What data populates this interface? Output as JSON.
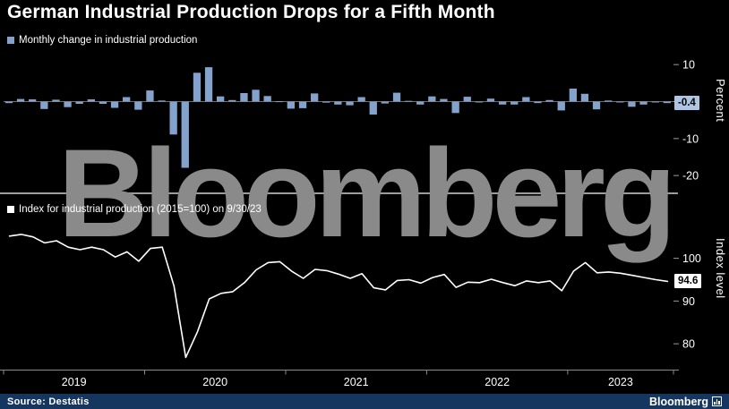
{
  "title": "German Industrial Production Drops for a Fifth Month",
  "watermark": "Bloomberg",
  "legends": {
    "bar": "Monthly change in industrial production",
    "line": "Index for industrial production (2015=100)  on 9/30/23"
  },
  "footer": {
    "source": "Source: Destatis",
    "brand": "Bloomberg"
  },
  "colors": {
    "bar": "#84a3cc",
    "line": "#ffffff",
    "badge_bar_bg": "#aec6e3",
    "badge_line_bg": "#ffffff",
    "axis": "#8a8a8a",
    "footer_bg": "#15365f",
    "watermark": "#8a8a8a",
    "background": "#000000"
  },
  "chart_data": [
    {
      "type": "bar",
      "title": "Monthly change in industrial production",
      "ylabel": "Percent",
      "ylim": [
        -21.5,
        12
      ],
      "yticks": [
        10,
        -10,
        -20
      ],
      "grid": false,
      "legend_position": "top-left",
      "last_value_label": "-0.4",
      "x_years": [
        "2019",
        "2020",
        "2021",
        "2022",
        "2023"
      ],
      "x_note": "monthly values Jan 2019 - Sep 2023",
      "values": [
        -0.4,
        0.7,
        0.6,
        -2.0,
        0.5,
        -1.5,
        -0.6,
        0.6,
        -0.6,
        -1.7,
        1.2,
        -2.2,
        3.0,
        0.3,
        -8.9,
        -17.9,
        7.8,
        9.3,
        1.4,
        0.4,
        2.3,
        3.2,
        1.5,
        0.1,
        -1.9,
        -1.8,
        2.2,
        -0.3,
        -0.8,
        -1.0,
        1.2,
        -3.5,
        -0.5,
        2.4,
        0.2,
        -0.8,
        1.4,
        0.7,
        -3.1,
        1.3,
        -0.1,
        0.8,
        -0.8,
        -0.8,
        1.2,
        -0.4,
        0.4,
        -2.4,
        3.5,
        2.1,
        -2.1,
        0.3,
        -0.2,
        -1.4,
        -0.8,
        -0.2,
        -0.4
      ]
    },
    {
      "type": "line",
      "title": "Index for industrial production (2015=100) on 9/30/23",
      "ylabel": "Index level",
      "ylim": [
        75,
        108.5
      ],
      "yticks": [
        100,
        90,
        80
      ],
      "grid": false,
      "legend_position": "top-left",
      "last_value_label": "94.6",
      "x_years": [
        "2019",
        "2020",
        "2021",
        "2022",
        "2023"
      ],
      "x_note": "monthly values Jan 2019 - Sep 2023",
      "values": [
        105.2,
        105.6,
        105.0,
        103.6,
        104.1,
        102.6,
        102.0,
        102.6,
        102.0,
        100.3,
        101.5,
        99.3,
        102.3,
        102.6,
        93.5,
        76.8,
        82.8,
        90.5,
        91.8,
        92.2,
        94.3,
        97.3,
        99.0,
        99.2,
        97.0,
        95.3,
        97.4,
        97.1,
        96.3,
        95.3,
        96.4,
        93.1,
        92.6,
        94.8,
        95.0,
        94.2,
        95.5,
        96.2,
        93.2,
        94.4,
        94.3,
        95.1,
        94.3,
        93.6,
        94.7,
        94.3,
        94.7,
        92.4,
        97.0,
        99.0,
        96.6,
        96.8,
        96.5,
        96.0,
        95.5,
        95.0,
        94.6
      ]
    }
  ]
}
